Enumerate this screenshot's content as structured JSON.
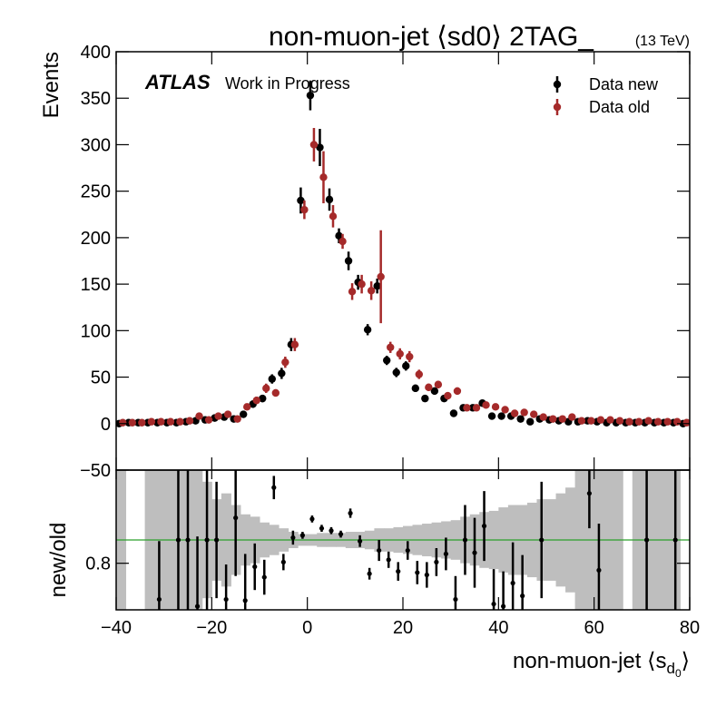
{
  "chart_data": {
    "type": "errorbar",
    "title": "non-muon-jet ⟨sd0⟩ 2TAG_",
    "energy_label": "(13 TeV)",
    "atlas_label": "ATLAS",
    "atlas_sub": "Work in Progress",
    "ylabel": "Events",
    "xlabel": {
      "text": "non-muon-jet ⟨s",
      "sub": "d",
      "subsub": "0",
      "close": "⟩"
    },
    "legend": "upper right",
    "x": [
      -39,
      -37,
      -35,
      -33,
      -31,
      -29,
      -27,
      -25,
      -23,
      -21,
      -19,
      -17,
      -15,
      -13,
      -11,
      -9,
      -7,
      -5,
      -3,
      -1,
      1,
      3,
      5,
      7,
      9,
      11,
      13,
      15,
      17,
      19,
      21,
      23,
      25,
      27,
      29,
      31,
      33,
      35,
      37,
      39,
      41,
      43,
      45,
      47,
      49,
      51,
      53,
      55,
      57,
      59,
      61,
      63,
      65,
      67,
      69,
      71,
      73,
      75,
      77,
      79
    ],
    "xlim": [
      -40,
      80
    ],
    "xticks": [
      {
        "value": -40,
        "label": "−40"
      },
      {
        "value": -20,
        "label": "−20"
      },
      0,
      20,
      40,
      60,
      80
    ],
    "ylim": [
      -50,
      400
    ],
    "yticks": [
      {
        "value": -50,
        "label": "−50"
      },
      0,
      50,
      100,
      150,
      200,
      250,
      300,
      350,
      400
    ],
    "series": [
      {
        "name": "Data new",
        "color": "#000000",
        "values": [
          0,
          1,
          1,
          1,
          1,
          1,
          1,
          2,
          3,
          4,
          6,
          7,
          5,
          10,
          21,
          27,
          48,
          54,
          85,
          240,
          353,
          297,
          241,
          202,
          175,
          152,
          101,
          148,
          68,
          55,
          62,
          38,
          27,
          35,
          27,
          11,
          17,
          17,
          22,
          8,
          8,
          8,
          5,
          2,
          5,
          4,
          3,
          2,
          2,
          3,
          2,
          1,
          1,
          1,
          1,
          1,
          1,
          1,
          1,
          0
        ],
        "errors": [
          0.5,
          1,
          1,
          1,
          1,
          1,
          1,
          1,
          2,
          2,
          2,
          2,
          2,
          3,
          4,
          4,
          5,
          6,
          7,
          14,
          16,
          20,
          12,
          8,
          10,
          8,
          6,
          8,
          5,
          5,
          5,
          4,
          3,
          4,
          3,
          2,
          2,
          2,
          2,
          1,
          1,
          1,
          1,
          1,
          1,
          1,
          1,
          1,
          1,
          1,
          1,
          1,
          1,
          1,
          1,
          1,
          1,
          1,
          1,
          1
        ]
      },
      {
        "name": "Data old",
        "color": "#a52a2a",
        "values": [
          1,
          1,
          1,
          2,
          2,
          2,
          2,
          3,
          8,
          4,
          8,
          10,
          5,
          18,
          25,
          38,
          33,
          66,
          85,
          230,
          300,
          265,
          223,
          196,
          142,
          150,
          143,
          158,
          82,
          75,
          72,
          53,
          39,
          42,
          30,
          35,
          17,
          17,
          20,
          18,
          15,
          11,
          12,
          10,
          7,
          5,
          5,
          7,
          3,
          3,
          4,
          4,
          3,
          2,
          2,
          3,
          2,
          2,
          2,
          1
        ],
        "errors": [
          1,
          1,
          1,
          1,
          1,
          1,
          1,
          1,
          2,
          2,
          2,
          2,
          2,
          3,
          4,
          5,
          4,
          6,
          7,
          10,
          18,
          28,
          12,
          8,
          9,
          10,
          10,
          50,
          6,
          6,
          6,
          5,
          4,
          4,
          4,
          4,
          2,
          2,
          2,
          2,
          2,
          2,
          2,
          2,
          1,
          1,
          1,
          1,
          1,
          1,
          1,
          1,
          1,
          1,
          1,
          1,
          1,
          1,
          1,
          1
        ]
      }
    ],
    "ratio": {
      "ylabel": "new/old",
      "ylim": [
        0.4,
        1.6
      ],
      "yticks": [
        0.8
      ],
      "reference_line": 1,
      "reference_color": "#2ca02c",
      "band_color": "#bebebe",
      "color": "#000000",
      "values": [
        null,
        null,
        null,
        null,
        0.49,
        null,
        1.0,
        1.0,
        0.43,
        1.0,
        1.0,
        0.49,
        1.19,
        0.48,
        0.77,
        0.68,
        1.45,
        0.81,
        1.02,
        1.04,
        1.18,
        1.1,
        1.08,
        1.05,
        1.23,
        0.99,
        0.71,
        0.91,
        0.83,
        0.73,
        0.91,
        0.72,
        0.7,
        0.81,
        0.88,
        0.49,
        1.0,
        0.89,
        1.12,
        0.45,
        0.43,
        0.63,
        0.52,
        null,
        1.0,
        null,
        null,
        null,
        null,
        1.4,
        0.74,
        null,
        null,
        null,
        null,
        1.0,
        null,
        null,
        1.0,
        null
      ],
      "errors": [
        null,
        null,
        null,
        null,
        0.5,
        null,
        0.8,
        0.8,
        0.6,
        0.6,
        0.5,
        0.3,
        0.5,
        0.4,
        0.2,
        0.15,
        0.1,
        0.07,
        0.06,
        0.03,
        0.03,
        0.03,
        0.03,
        0.03,
        0.04,
        0.05,
        0.05,
        0.09,
        0.07,
        0.08,
        0.08,
        0.1,
        0.11,
        0.12,
        0.14,
        0.2,
        0.3,
        0.3,
        0.3,
        0.3,
        0.3,
        0.35,
        0.35,
        null,
        0.5,
        null,
        null,
        null,
        null,
        0.3,
        0.4,
        null,
        null,
        null,
        null,
        0.6,
        null,
        null,
        0.6,
        null
      ],
      "band": [
        1.0,
        null,
        null,
        1.0,
        1.0,
        1.0,
        1.0,
        1.0,
        0.6,
        0.5,
        0.35,
        0.4,
        0.3,
        0.22,
        0.2,
        0.15,
        0.13,
        0.1,
        0.07,
        0.05,
        0.05,
        0.06,
        0.06,
        0.06,
        0.07,
        0.07,
        0.08,
        0.1,
        0.1,
        0.11,
        0.12,
        0.13,
        0.14,
        0.15,
        0.16,
        0.17,
        0.2,
        0.22,
        0.24,
        0.25,
        0.28,
        0.3,
        0.3,
        0.32,
        0.35,
        0.35,
        0.4,
        0.45,
        0.6,
        0.6,
        1.0,
        1.0,
        1.0,
        null,
        1.0,
        1.0,
        1.0,
        1.0,
        1.0,
        null
      ]
    }
  }
}
